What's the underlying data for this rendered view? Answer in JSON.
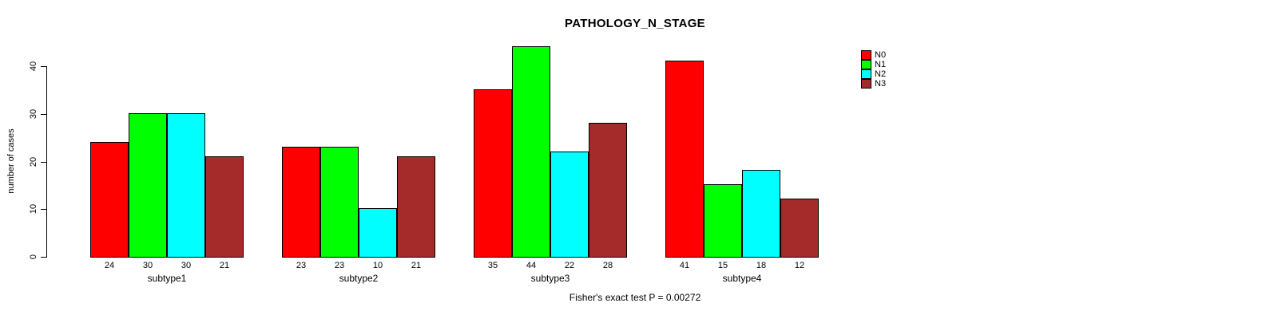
{
  "title": "PATHOLOGY_N_STAGE",
  "footer": "Fisher's exact test P = 0.00272",
  "chart_data": {
    "type": "bar",
    "grouped": true,
    "title": "PATHOLOGY_N_STAGE",
    "xlabel": "",
    "ylabel": "number of cases",
    "categories": [
      "subtype1",
      "subtype2",
      "subtype3",
      "subtype4"
    ],
    "series": [
      {
        "name": "N0",
        "color": "#FF0000",
        "values": [
          24,
          23,
          35,
          41
        ]
      },
      {
        "name": "N1",
        "color": "#00FF00",
        "values": [
          30,
          23,
          44,
          15
        ]
      },
      {
        "name": "N2",
        "color": "#00FFFF",
        "values": [
          30,
          10,
          22,
          18
        ]
      },
      {
        "name": "N3",
        "color": "#A52A2A",
        "values": [
          21,
          21,
          28,
          12
        ]
      }
    ],
    "yticks": [
      0,
      10,
      20,
      30,
      40
    ],
    "ylim": [
      0,
      44
    ],
    "grid": false,
    "legend_position": "top-right",
    "bar_value_labels": true,
    "annotation": "Fisher's exact test P = 0.00272"
  }
}
